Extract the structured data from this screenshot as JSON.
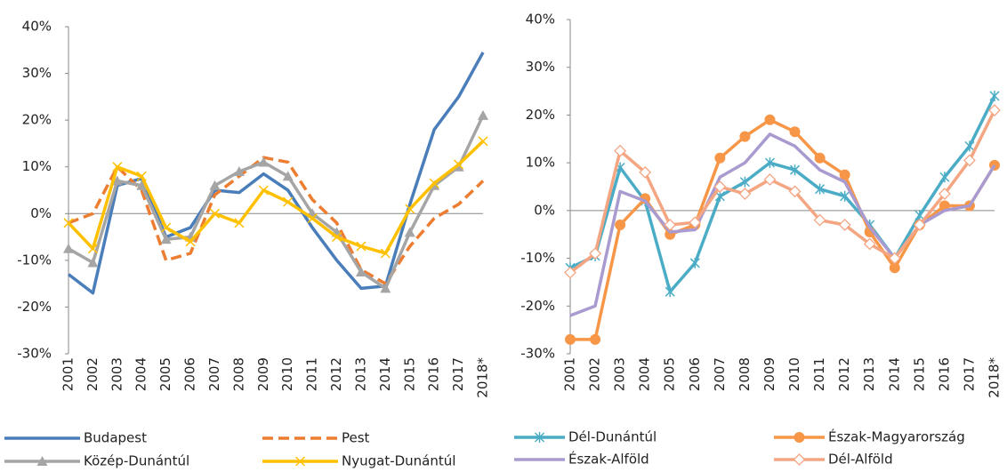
{
  "chart_data": [
    {
      "type": "line",
      "legend": "bottom",
      "categories": [
        "2001",
        "2002",
        "2003",
        "2004",
        "2005",
        "2006",
        "2007",
        "2008",
        "2009",
        "2010",
        "2011",
        "2012",
        "2013",
        "2014",
        "2015",
        "2016",
        "2017",
        "2018*"
      ],
      "ylim": [
        -30,
        40
      ],
      "yticks": [
        {
          "value": -30,
          "label": "-30%"
        },
        {
          "value": -20,
          "label": "-20%"
        },
        {
          "value": -10,
          "label": "-10%"
        },
        {
          "value": 0,
          "label": "0%"
        },
        {
          "value": 10,
          "label": "10%"
        },
        {
          "value": 20,
          "label": "20%"
        },
        {
          "value": 30,
          "label": "30%"
        },
        {
          "value": 40,
          "label": "40%"
        }
      ],
      "series": [
        {
          "name": "Budapest",
          "color": "#4a7ebb",
          "values": [
            -13,
            -17,
            6,
            7.5,
            -5,
            -3,
            5,
            4.5,
            8.5,
            5,
            -3,
            -10,
            -16,
            -15.5,
            2,
            18,
            25,
            34.5
          ]
        },
        {
          "name": "Pest",
          "color": "#ed7d31",
          "dash": true,
          "values": [
            -2,
            0,
            10,
            5,
            -10,
            -8.5,
            4,
            8,
            12,
            11,
            3,
            -2,
            -12,
            -15,
            -7,
            -1,
            2,
            7
          ]
        },
        {
          "name": "Közép-Dunántúl",
          "color": "#a5a5a5",
          "marker": "triangle",
          "values": [
            -7.5,
            -10.5,
            7,
            6,
            -5.5,
            -5,
            6,
            9,
            11,
            8,
            0,
            -4,
            -12.5,
            -16,
            -4,
            6,
            10,
            21
          ]
        },
        {
          "name": "Nyugat-Dunántúl",
          "color": "#ffc000",
          "marker": "x",
          "values": [
            -2,
            -7.5,
            10,
            8,
            -3,
            -6,
            0,
            -2,
            5,
            2.5,
            -1,
            -5,
            -7,
            -8.5,
            1,
            6.5,
            10.5,
            15.5
          ]
        }
      ]
    },
    {
      "type": "line",
      "legend": "bottom",
      "categories": [
        "2001",
        "2002",
        "2003",
        "2004",
        "2005",
        "2006",
        "2007",
        "2008",
        "2009",
        "2010",
        "2011",
        "2012",
        "2013",
        "2014",
        "2015",
        "2016",
        "2017",
        "2018*"
      ],
      "ylim": [
        -30,
        40
      ],
      "yticks": [
        {
          "value": -30,
          "label": "-30%"
        },
        {
          "value": -20,
          "label": "-20%"
        },
        {
          "value": -10,
          "label": "-10%"
        },
        {
          "value": 0,
          "label": "0%"
        },
        {
          "value": 10,
          "label": "10%"
        },
        {
          "value": 20,
          "label": "20%"
        },
        {
          "value": 30,
          "label": "30%"
        },
        {
          "value": 40,
          "label": "40%"
        }
      ],
      "series": [
        {
          "name": "Dél-Dunántúl",
          "color": "#4bacc6",
          "marker": "asterisk",
          "values": [
            -12,
            -9.5,
            9,
            2,
            -17,
            -11,
            3,
            6,
            10,
            8.5,
            4.5,
            3,
            -3,
            -10,
            -1,
            7,
            13.5,
            24
          ]
        },
        {
          "name": "Észak-Magyarország",
          "color": "#f79646",
          "marker": "circle",
          "values": [
            -27,
            -27,
            -3,
            2.5,
            -5,
            -3,
            11,
            15.5,
            19,
            16.5,
            11,
            7.5,
            -4.5,
            -12,
            -3,
            1,
            1,
            9.5
          ]
        },
        {
          "name": "Észak-Alföld",
          "color": "#a99bd0",
          "values": [
            -22,
            -20,
            4,
            2,
            -4.5,
            -4,
            7,
            10,
            16,
            13.5,
            8.5,
            6,
            -3.5,
            -10,
            -3,
            0,
            1,
            9.5
          ]
        },
        {
          "name": "Dél-Alföld",
          "color": "#f4a582",
          "marker": "diamond-open",
          "values": [
            -13,
            -9,
            12.5,
            8,
            -3,
            -2.5,
            5,
            3.5,
            6.5,
            4,
            -2,
            -3,
            -7,
            -10,
            -3,
            3.5,
            10.5,
            21
          ]
        }
      ]
    }
  ]
}
